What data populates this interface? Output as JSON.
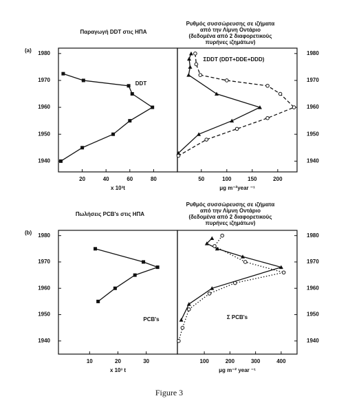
{
  "chart_data": [
    {
      "type": "line",
      "label": "(a)",
      "title": [
        "Παραγωγή DDT στις ΗΠΑ"
      ],
      "xlabel": "x 10³t",
      "xlim": [
        0,
        100
      ],
      "xticks": [
        20,
        40,
        60,
        80
      ],
      "ylim": [
        1936,
        1982
      ],
      "yticks": [
        1940,
        1950,
        1960,
        1970,
        1980
      ],
      "ytick_side": "left",
      "annotations": [
        "DDT"
      ],
      "series": [
        {
          "color": "#111",
          "marker": "square",
          "dash": "solid",
          "x": [
            2,
            20,
            46,
            60,
            79,
            62,
            59,
            21,
            4
          ],
          "y": [
            1940,
            1945,
            1950,
            1955,
            1960,
            1965,
            1968,
            1970,
            1972.5
          ]
        }
      ]
    },
    {
      "type": "line",
      "title": [
        "Ρυθμός συσσώρευσης σε ιζήματα",
        "από την Λίμνη Οντάριο",
        "(δεδομένα από 2 διαφορετικούς",
        "πυρήνες ιζημάτων)"
      ],
      "xlabel": "μg m⁻²year ⁻¹",
      "xlim": [
        3,
        238
      ],
      "xticks": [
        50,
        100,
        150,
        200
      ],
      "ylim": [
        1936,
        1982
      ],
      "yticks": [
        1940,
        1950,
        1960,
        1970,
        1980
      ],
      "ytick_side": "right",
      "annotations": [
        "ΣDDT (DDT+DDE+DDD)"
      ],
      "series": [
        {
          "color": "#111",
          "marker": "triangle",
          "dash": "solid",
          "x": [
            30,
            26,
            28,
            25,
            80,
            165,
            110,
            45,
            5
          ],
          "y": [
            1980,
            1978,
            1975,
            1972,
            1965,
            1960,
            1955,
            1950,
            1943
          ]
        },
        {
          "color": "#111",
          "marker": "circle",
          "dash": "dashed",
          "x": [
            38,
            40,
            48,
            100,
            180,
            205,
            232,
            180,
            120,
            60,
            5
          ],
          "y": [
            1980,
            1976,
            1972,
            1970,
            1968,
            1965,
            1960,
            1956,
            1952,
            1948,
            1942
          ]
        }
      ]
    },
    {
      "type": "line",
      "label": "(b)",
      "title": [
        "Πωλήσεις PCB's στις ΗΠΑ"
      ],
      "xlabel": "x 10³ t",
      "xlim": [
        -1,
        41
      ],
      "xticks": [
        10,
        20,
        30
      ],
      "ylim": [
        1935,
        1982
      ],
      "yticks": [
        1940,
        1950,
        1960,
        1970,
        1980
      ],
      "ytick_side": "left",
      "annotations": [
        "PCB's"
      ],
      "series": [
        {
          "color": "#111",
          "marker": "square",
          "dash": "solid",
          "x": [
            12,
            29,
            34,
            26,
            19,
            13
          ],
          "y": [
            1975,
            1970,
            1968,
            1965,
            1960,
            1955
          ]
        }
      ]
    },
    {
      "type": "line",
      "title": [
        "Ρυθμός συσσώρευσης σε ιζήματα",
        "από την Λίμνη Οντάριο",
        "(δεδομένα από 2 διαφορετικούς",
        "πυρήνες ιζημάτων)"
      ],
      "xlabel": "μg m⁻²  year ⁻¹",
      "xlim": [
        -5,
        462
      ],
      "xticks": [
        100,
        200,
        300,
        400
      ],
      "ylim": [
        1935,
        1982
      ],
      "yticks": [
        1940,
        1950,
        1960,
        1970,
        1980
      ],
      "ytick_side": "right",
      "annotations": [
        "Σ PCB's"
      ],
      "series": [
        {
          "color": "#111",
          "marker": "triangle",
          "dash": "solid",
          "x": [
            130,
            110,
            150,
            250,
            400,
            130,
            40,
            10
          ],
          "y": [
            1979,
            1977,
            1975,
            1972,
            1968,
            1960,
            1954,
            1948
          ]
        },
        {
          "color": "#111",
          "marker": "circle",
          "dash": "dotted",
          "x": [
            170,
            140,
            260,
            410,
            220,
            120,
            40,
            15,
            0
          ],
          "y": [
            1980,
            1976,
            1970,
            1966,
            1962,
            1958,
            1952,
            1945,
            1940
          ]
        }
      ]
    }
  ],
  "caption": "Figure 3"
}
